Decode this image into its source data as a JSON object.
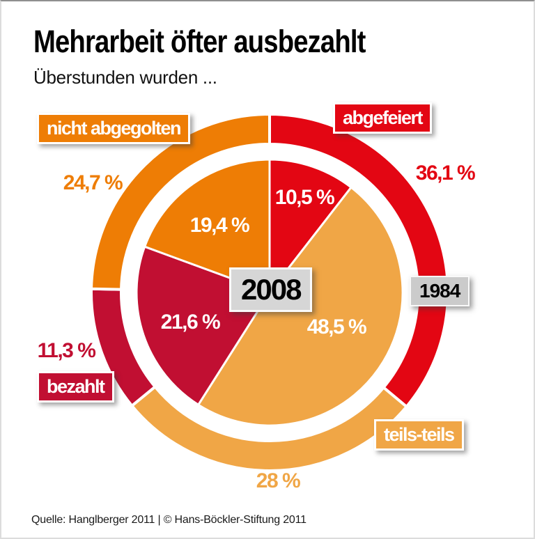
{
  "page": {
    "title": "Mehrarbeit öfter ausbezahlt",
    "subtitle": "Überstunden wurden ...",
    "source": "Quelle: Hanglberger 2011 | © Hans-Böckler-Stiftung 2011"
  },
  "colors": {
    "red": "#e30613",
    "light_orange": "#f0a646",
    "dark_red": "#c10f32",
    "orange": "#ee7d05",
    "year_box_bg_big": "#d6d6d6",
    "year_box_bg_small": "#cbcbcb"
  },
  "badges": {
    "abgefeiert": "abgefeiert",
    "nicht_abgegolten": "nicht abgegolten",
    "bezahlt": "bezahlt",
    "teils_teils": "teils-teils"
  },
  "years": {
    "inner": "2008",
    "outer": "1984"
  },
  "value_labels": {
    "y2008": {
      "abgefeiert": "10,5 %",
      "teils_teils": "48,5 %",
      "bezahlt": "21,6 %",
      "nicht_abgegolten": "19,4 %"
    },
    "y1984": {
      "abgefeiert": "36,1 %",
      "teils_teils": "28 %",
      "bezahlt": "11,3 %",
      "nicht_abgegolten": "24,7 %"
    }
  },
  "chart_data": {
    "type": "pie",
    "title": "Mehrarbeit öfter ausbezahlt",
    "subtitle": "Überstunden wurden ...",
    "unit": "%",
    "categories": [
      "abgefeiert",
      "teils-teils",
      "bezahlt",
      "nicht abgegolten"
    ],
    "series": [
      {
        "name": "2008",
        "ring": "inner-pie",
        "values": [
          10.5,
          48.5,
          21.6,
          19.4
        ]
      },
      {
        "name": "1984",
        "ring": "outer-ring",
        "values": [
          36.1,
          28.0,
          11.3,
          24.7
        ]
      }
    ],
    "colors": [
      "#e30613",
      "#f0a646",
      "#c10f32",
      "#ee7d05"
    ],
    "start_angle_deg": 0,
    "direction": "clockwise",
    "legend_position": "badges-around-chart",
    "source": "Quelle: Hanglberger 2011 | © Hans-Böckler-Stiftung 2011"
  }
}
